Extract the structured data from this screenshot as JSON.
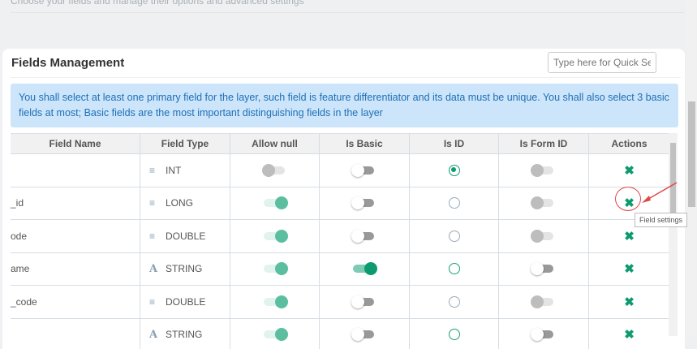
{
  "header": {
    "subtitle": "Choose your fields and manage their options and advanced settings"
  },
  "card": {
    "title": "Fields Management",
    "search_placeholder": "Type here for Quick Search",
    "info": "You shall select at least one primary field for the layer, such field is feature differentiator and its data must be unique. You shall also select 3 basic fields at most; Basic fields are the most important distinguishing fields in the layer"
  },
  "table": {
    "columns": [
      "Field Name",
      "Field Type",
      "Allow null",
      "Is Basic",
      "Is ID",
      "Is Form ID",
      "Actions"
    ],
    "rows": [
      {
        "name": "",
        "type": "INT",
        "type_icon": "list-icon",
        "allow_null": "disabled-off",
        "is_basic": "off",
        "is_id": "checked",
        "is_form_id": "disabled-off"
      },
      {
        "name": "_id",
        "type": "LONG",
        "type_icon": "list-icon",
        "allow_null": "on",
        "is_basic": "off",
        "is_id": "unchecked",
        "is_form_id": "disabled-off"
      },
      {
        "name": "ode",
        "type": "DOUBLE",
        "type_icon": "list-icon",
        "allow_null": "on",
        "is_basic": "off",
        "is_id": "unchecked",
        "is_form_id": "disabled-off"
      },
      {
        "name": "ame",
        "type": "STRING",
        "type_icon": "text-icon",
        "allow_null": "on",
        "is_basic": "on",
        "is_id": "unchecked-green",
        "is_form_id": "off"
      },
      {
        "name": "_code",
        "type": "DOUBLE",
        "type_icon": "list-icon",
        "allow_null": "on",
        "is_basic": "off",
        "is_id": "unchecked",
        "is_form_id": "disabled-off"
      },
      {
        "name": "",
        "type": "STRING",
        "type_icon": "text-icon",
        "allow_null": "on",
        "is_basic": "off",
        "is_id": "unchecked-green",
        "is_form_id": "off"
      }
    ],
    "action_icon": "tools-icon",
    "tooltip": "Field settings"
  },
  "colors": {
    "accent": "#0e9a6f",
    "info_bg": "#cce5fb",
    "info_text": "#1f6fb5",
    "highlight": "#e04848"
  }
}
